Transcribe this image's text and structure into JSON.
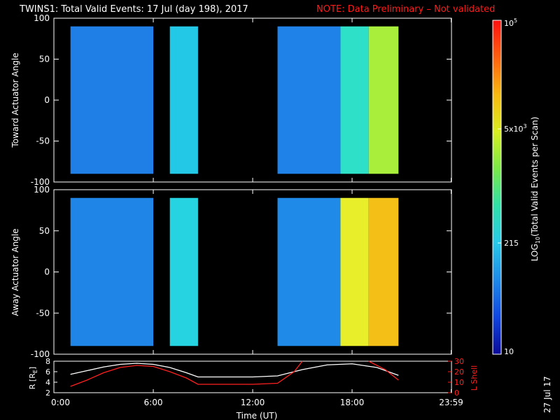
{
  "title": "TWINS1: Total Valid Events: 17 Jul (day 198), 2017",
  "note": "NOTE: Data Preliminary – Not validated",
  "stamp": "27 Jul 17",
  "colors": {
    "note": "#ff1a1a",
    "radius_line": "#ffffff",
    "lshell_line": "#ff2020",
    "background": "#000000"
  },
  "chart_data": [
    {
      "type": "heatmap",
      "panel": "toward",
      "ylabel": "Toward Actuator Angle",
      "ylim": [
        -100,
        100
      ],
      "yticks": [
        100,
        50,
        0,
        -50,
        -100
      ],
      "xlim": [
        0,
        24
      ],
      "x_units": "hours UT",
      "data_blocks": [
        {
          "x_start": 1.0,
          "x_end": 6.0,
          "y_start": -90,
          "y_end": 90,
          "color": "#1f7fe6"
        },
        {
          "x_start": 7.0,
          "x_end": 8.7,
          "y_start": -90,
          "y_end": 90,
          "color": "#22c8e6"
        },
        {
          "x_start": 13.5,
          "x_end": 17.3,
          "y_start": -90,
          "y_end": 90,
          "color": "#1f82e8"
        },
        {
          "x_start": 17.3,
          "x_end": 19.0,
          "y_start": -90,
          "y_end": 90,
          "color": "#2ee0c8"
        },
        {
          "x_start": 19.0,
          "x_end": 20.8,
          "y_start": -90,
          "y_end": 90,
          "color": "#a8ee3a"
        }
      ]
    },
    {
      "type": "heatmap",
      "panel": "away",
      "ylabel": "Away Actuator Angle",
      "ylim": [
        -100,
        100
      ],
      "yticks": [
        100,
        50,
        0,
        -50,
        -100
      ],
      "xlim": [
        0,
        24
      ],
      "x_units": "hours UT",
      "data_blocks": [
        {
          "x_start": 1.0,
          "x_end": 6.0,
          "y_start": -90,
          "y_end": 90,
          "color": "#1f86e8"
        },
        {
          "x_start": 7.0,
          "x_end": 8.7,
          "y_start": -90,
          "y_end": 90,
          "color": "#25d4e0"
        },
        {
          "x_start": 13.5,
          "x_end": 17.3,
          "y_start": -90,
          "y_end": 90,
          "color": "#1f8ae8"
        },
        {
          "x_start": 17.3,
          "x_end": 19.0,
          "y_start": -90,
          "y_end": 90,
          "color": "#e8ee2a"
        },
        {
          "x_start": 19.0,
          "x_end": 20.8,
          "y_start": -90,
          "y_end": 90,
          "color": "#f4c018"
        }
      ]
    },
    {
      "type": "line",
      "panel": "orbit",
      "ylabel_left": "R [R",
      "ylabel_left_sub": "E",
      "ylabel_left_end": "]",
      "ylabel_right": "L Shell",
      "left_ylim": [
        2,
        8
      ],
      "left_yticks": [
        8,
        6,
        4,
        2
      ],
      "right_ylim": [
        0,
        30
      ],
      "right_yticks": [
        30,
        20,
        10,
        0
      ],
      "xlim": [
        0,
        24
      ],
      "xticks": [
        "0:00",
        "6:00",
        "12:00",
        "18:00",
        "23:59"
      ],
      "xtick_values": [
        0,
        6,
        12,
        18,
        23.98
      ],
      "xlabel": "Time (UT)",
      "series": [
        {
          "axis": "left",
          "x": [
            1.0,
            2.0,
            3.0,
            4.0,
            5.0,
            6.0,
            7.0,
            8.0,
            8.7,
            10.0,
            12.0,
            13.5,
            15.0,
            16.5,
            18.0,
            19.5,
            20.8
          ],
          "y": [
            5.5,
            6.2,
            6.9,
            7.4,
            7.6,
            7.4,
            6.8,
            5.8,
            5.0,
            5.0,
            5.0,
            5.2,
            6.4,
            7.3,
            7.5,
            6.8,
            5.3
          ]
        },
        {
          "axis": "right",
          "x": [
            1.0,
            2.0,
            3.0,
            4.0,
            5.0,
            6.0,
            7.0,
            8.0,
            8.7,
            10.0,
            12.0,
            13.5,
            14.5,
            15.0
          ],
          "y": [
            6,
            12,
            19,
            24,
            26,
            25,
            20,
            14,
            8,
            8,
            8,
            9,
            20,
            30
          ]
        },
        {
          "axis": "right",
          "x": [
            19.0,
            20.0,
            20.8
          ],
          "y": [
            30,
            22,
            12
          ]
        }
      ]
    },
    {
      "type": "colorbar",
      "label_main": "LOG",
      "label_sub": "10",
      "label_rest": "(Total Valid Events per Scan)",
      "scale": "log",
      "range": [
        10,
        100000
      ],
      "tick_values": [
        100000,
        5000,
        215,
        10
      ],
      "ticks": [
        {
          "base": "10",
          "exp": "5",
          "prefix": ""
        },
        {
          "base": "10",
          "exp": "3",
          "prefix": "5x"
        },
        {
          "base": "215",
          "exp": "",
          "prefix": ""
        },
        {
          "base": "10",
          "exp": "",
          "prefix": ""
        }
      ],
      "stops": [
        "#0a0a9a",
        "#1046e0",
        "#1e8ae8",
        "#28c8e8",
        "#30e0a8",
        "#7ae848",
        "#d8ee20",
        "#f8b810",
        "#ff6010",
        "#ff1010"
      ]
    }
  ]
}
